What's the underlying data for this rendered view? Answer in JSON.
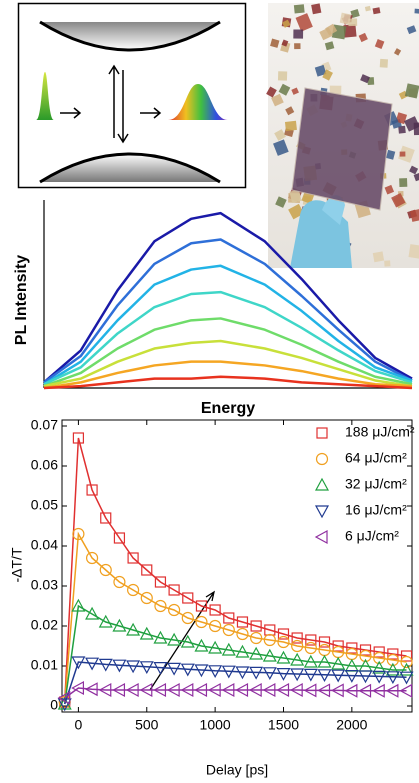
{
  "chart_data": [
    {
      "type": "line",
      "ylabel": "PL Intensity",
      "xlabel": "Energy",
      "x": [
        0,
        10,
        20,
        30,
        40,
        48,
        60,
        70,
        80,
        90,
        100
      ],
      "xlim": [
        0,
        100
      ],
      "ylim": [
        0,
        100
      ],
      "series": [
        {
          "color": "#1a1aa8",
          "values": [
            3,
            20,
            52,
            78,
            90,
            93,
            78,
            58,
            36,
            16,
            5
          ]
        },
        {
          "color": "#2e6fd8",
          "values": [
            3,
            17,
            44,
            66,
            77,
            79,
            66,
            49,
            31,
            14,
            4
          ]
        },
        {
          "color": "#22b3e6",
          "values": [
            2,
            14,
            36,
            55,
            63,
            65,
            55,
            41,
            25,
            11,
            4
          ]
        },
        {
          "color": "#3fd6c8",
          "values": [
            2,
            11,
            29,
            43,
            50,
            51,
            43,
            32,
            20,
            9,
            3
          ]
        },
        {
          "color": "#6fdc6a",
          "values": [
            1,
            8,
            21,
            31,
            36,
            37,
            31,
            23,
            14,
            6,
            2
          ]
        },
        {
          "color": "#c8e03a",
          "values": [
            1,
            5,
            14,
            21,
            24,
            25,
            21,
            16,
            10,
            4,
            1
          ]
        },
        {
          "color": "#f5a623",
          "values": [
            0,
            3,
            8,
            12,
            14,
            14,
            12,
            9,
            5,
            2,
            1
          ]
        },
        {
          "color": "#e8321e",
          "values": [
            0,
            1,
            3,
            5,
            5,
            6,
            5,
            3,
            2,
            1,
            0
          ]
        }
      ]
    },
    {
      "type": "scatter",
      "ylabel": "-ΔT/T",
      "xlabel": "Delay [ps]",
      "x": [
        -100,
        0,
        100,
        200,
        300,
        400,
        500,
        600,
        700,
        800,
        900,
        1000,
        1100,
        1200,
        1300,
        1400,
        1500,
        1600,
        1700,
        1800,
        1900,
        2000,
        2100,
        2200,
        2300,
        2400
      ],
      "xlim": [
        -120,
        2440
      ],
      "ylim": [
        -0.0015,
        0.0715
      ],
      "xticks": [
        0,
        500,
        1000,
        1500,
        2000
      ],
      "yticks": [
        0,
        0.01,
        0.02,
        0.03,
        0.04,
        0.05,
        0.06,
        0.07
      ],
      "series": [
        {
          "name": "188 μJ/cm²",
          "color": "#e03030",
          "marker": "square",
          "values": [
            0.001,
            0.067,
            0.054,
            0.047,
            0.042,
            0.037,
            0.034,
            0.031,
            0.029,
            0.027,
            0.025,
            0.024,
            0.022,
            0.021,
            0.02,
            0.019,
            0.018,
            0.017,
            0.0165,
            0.016,
            0.015,
            0.0145,
            0.014,
            0.0135,
            0.013,
            0.0125
          ]
        },
        {
          "name": "64 μJ/cm²",
          "color": "#f0a020",
          "marker": "circle",
          "values": [
            0.001,
            0.043,
            0.037,
            0.034,
            0.031,
            0.029,
            0.027,
            0.025,
            0.024,
            0.022,
            0.021,
            0.02,
            0.019,
            0.018,
            0.017,
            0.0165,
            0.016,
            0.015,
            0.0145,
            0.014,
            0.0135,
            0.013,
            0.0125,
            0.012,
            0.0115,
            0.011
          ]
        },
        {
          "name": "32 μJ/cm²",
          "color": "#20a040",
          "marker": "triangle-up",
          "values": [
            0.0005,
            0.025,
            0.023,
            0.021,
            0.02,
            0.019,
            0.018,
            0.017,
            0.0165,
            0.016,
            0.015,
            0.0145,
            0.014,
            0.0135,
            0.013,
            0.0125,
            0.012,
            0.0115,
            0.011,
            0.011,
            0.0105,
            0.01,
            0.01,
            0.0095,
            0.009,
            0.009
          ]
        },
        {
          "name": "16 μJ/cm²",
          "color": "#203a90",
          "marker": "triangle-down",
          "values": [
            0.0005,
            0.011,
            0.0107,
            0.0104,
            0.0102,
            0.01,
            0.0098,
            0.0096,
            0.0094,
            0.0092,
            0.009,
            0.0088,
            0.0087,
            0.0085,
            0.0084,
            0.0083,
            0.0081,
            0.008,
            0.0079,
            0.0078,
            0.0077,
            0.0076,
            0.0075,
            0.0074,
            0.0073,
            0.0072
          ]
        },
        {
          "name": "6 μJ/cm²",
          "color": "#9030a0",
          "marker": "triangle-left",
          "values": [
            0.002,
            0.0045,
            0.0042,
            0.004,
            0.004,
            0.004,
            0.004,
            0.004,
            0.004,
            0.004,
            0.004,
            0.004,
            0.004,
            0.004,
            0.004,
            0.004,
            0.004,
            0.004,
            0.0039,
            0.0039,
            0.0039,
            0.0038,
            0.0038,
            0.0038,
            0.0038,
            0.0038
          ]
        }
      ]
    }
  ]
}
